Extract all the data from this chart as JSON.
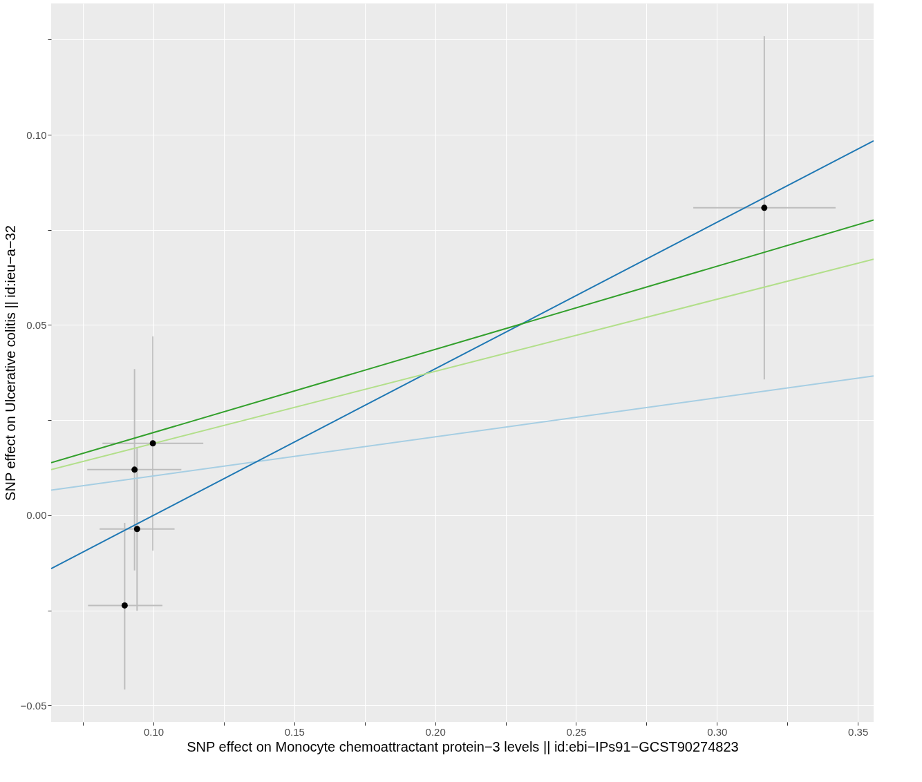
{
  "chart_data": {
    "type": "scatter",
    "xlabel": "SNP effect on Monocyte chemoattractant protein−3 levels || id:ebi−IPs91−GCST90274823",
    "ylabel": "SNP effect on Ulcerative colitis || id:ieu−a−32",
    "xlim": [
      0.0637,
      0.3556
    ],
    "ylim": [
      -0.0543,
      0.1345
    ],
    "xticks": [
      {
        "value": 0.075,
        "label": null
      },
      {
        "value": 0.1,
        "label": "0.10"
      },
      {
        "value": 0.125,
        "label": null
      },
      {
        "value": 0.15,
        "label": "0.15"
      },
      {
        "value": 0.175,
        "label": null
      },
      {
        "value": 0.2,
        "label": "0.20"
      },
      {
        "value": 0.225,
        "label": null
      },
      {
        "value": 0.25,
        "label": "0.25"
      },
      {
        "value": 0.275,
        "label": null
      },
      {
        "value": 0.3,
        "label": "0.30"
      },
      {
        "value": 0.325,
        "label": null
      },
      {
        "value": 0.35,
        "label": "0.35"
      }
    ],
    "yticks": [
      {
        "value": -0.05,
        "label": "−0.05"
      },
      {
        "value": -0.025,
        "label": null
      },
      {
        "value": 0,
        "label": "0.00"
      },
      {
        "value": 0.025,
        "label": null
      },
      {
        "value": 0.05,
        "label": "0.05"
      },
      {
        "value": 0.075,
        "label": null
      },
      {
        "value": 0.1,
        "label": "0.10"
      },
      {
        "value": 0.125,
        "label": null
      }
    ],
    "grid": true,
    "series": [
      {
        "marker": "circle",
        "color": "#000000",
        "x": [
          0.0998,
          0.0933,
          0.0942,
          0.0898,
          0.3168
        ],
        "values": [
          0.0189,
          0.012,
          -0.0036,
          -0.0237,
          0.0808
        ],
        "errors": [
          [
            -0.0093,
            0.047
          ],
          [
            -0.0145,
            0.0384
          ],
          [
            -0.0251,
            0.0179
          ],
          [
            -0.0458,
            -0.002
          ],
          [
            0.0357,
            0.1259
          ]
        ],
        "xerrors": [
          [
            0.0819,
            0.1177
          ],
          [
            0.0765,
            0.1099
          ],
          [
            0.0809,
            0.1075
          ],
          [
            0.0768,
            0.1032
          ],
          [
            0.2916,
            0.3421
          ]
        ]
      },
      {
        "type": "line",
        "color": "#a6cee3",
        "x": [
          0.0637,
          0.3556
        ],
        "values": [
          0.0066,
          0.0366
        ]
      },
      {
        "type": "line",
        "color": "#1f78b4",
        "x": [
          0.0637,
          0.3556
        ],
        "values": [
          -0.014,
          0.0984
        ]
      },
      {
        "type": "line",
        "color": "#b2df8a",
        "x": [
          0.0637,
          0.3556
        ],
        "values": [
          0.012,
          0.0673
        ]
      },
      {
        "type": "line",
        "color": "#33a02c",
        "x": [
          0.0637,
          0.3556
        ],
        "values": [
          0.0138,
          0.0776
        ]
      }
    ]
  }
}
